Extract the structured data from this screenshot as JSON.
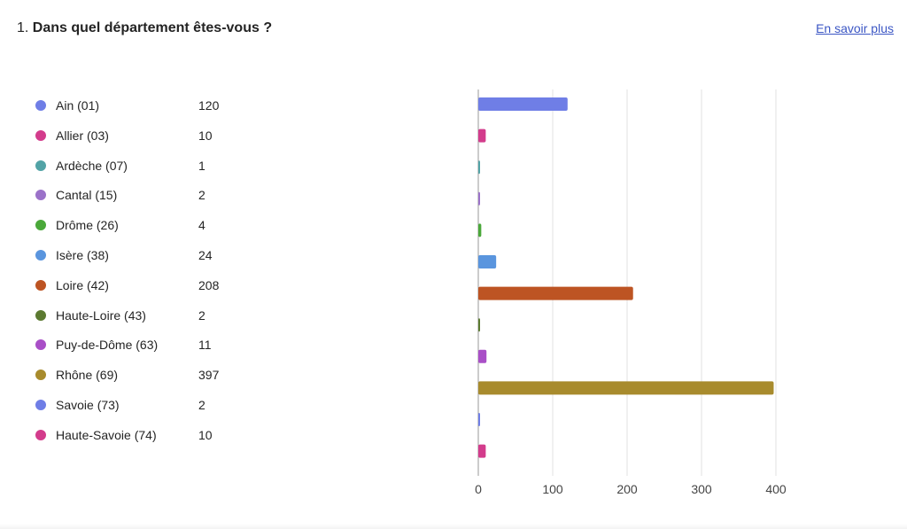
{
  "question": {
    "number": "1.",
    "text": "Dans quel département êtes-vous ?"
  },
  "learn_more": "En savoir plus",
  "chart_data": {
    "type": "bar",
    "orientation": "horizontal",
    "categories": [
      "Ain (01)",
      "Allier (03)",
      "Ardèche (07)",
      "Cantal (15)",
      "Drôme (26)",
      "Isère (38)",
      "Loire (42)",
      "Haute-Loire (43)",
      "Puy-de-Dôme (63)",
      "Rhône (69)",
      "Savoie (73)",
      "Haute-Savoie (74)"
    ],
    "values": [
      120,
      10,
      1,
      2,
      4,
      24,
      208,
      2,
      11,
      397,
      2,
      10
    ],
    "value_labels": [
      "120",
      "10",
      "1",
      "2",
      "4",
      "24",
      "208",
      "2",
      "11",
      "397",
      "2",
      "10"
    ],
    "colors": [
      "#6f7ee6",
      "#d33c8c",
      "#52a3a6",
      "#9b72c9",
      "#4aa83a",
      "#5a95de",
      "#bd5423",
      "#5c7a31",
      "#a94fc7",
      "#a88b2d",
      "#6f7ee6",
      "#d33c8c"
    ],
    "xlim": [
      0,
      400
    ],
    "xticks": [
      "0",
      "100",
      "200",
      "300",
      "400"
    ],
    "grid": true,
    "legend_placement": "left",
    "title": "",
    "xlabel": "",
    "ylabel": ""
  }
}
